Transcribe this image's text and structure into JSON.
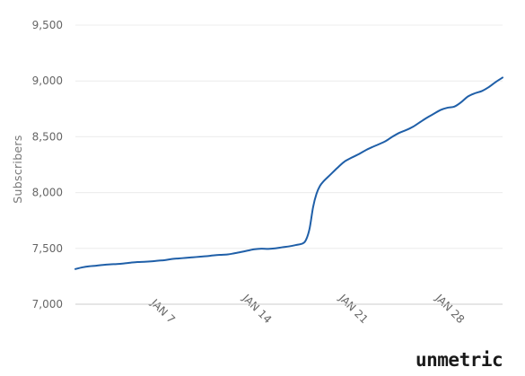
{
  "chart_data": {
    "type": "line",
    "title": "",
    "xlabel": "",
    "ylabel": "Subscribers",
    "ylim": [
      7000,
      9500
    ],
    "yticks": [
      7000,
      7500,
      8000,
      8500,
      9000,
      9500
    ],
    "ytick_labels": [
      "7,000",
      "7,500",
      "8,000",
      "8,500",
      "9,000",
      "9,500"
    ],
    "xticks": [
      7,
      14,
      21,
      28
    ],
    "xtick_labels": [
      "JAN 7",
      "JAN 14",
      "JAN 21",
      "JAN 28"
    ],
    "xlim": [
      1,
      32
    ],
    "grid": "horizontal",
    "series": [
      {
        "color": "#1f5fa8",
        "x": [
          1,
          1.5,
          2,
          2.5,
          3,
          3.5,
          4,
          4.5,
          5,
          5.5,
          6,
          6.5,
          7,
          7.5,
          8,
          8.5,
          9,
          9.5,
          10,
          10.5,
          11,
          11.5,
          12,
          12.5,
          13,
          13.5,
          14,
          14.5,
          15,
          15.5,
          16,
          16.5,
          17,
          17.5,
          17.75,
          18,
          18.25,
          18.5,
          18.75,
          19,
          19.5,
          20,
          20.5,
          21,
          21.5,
          22,
          22.5,
          23,
          23.5,
          24,
          24.5,
          25,
          25.5,
          26,
          26.5,
          27,
          27.5,
          28,
          28.5,
          29,
          29.5,
          30,
          30.5,
          31,
          31.5,
          32
        ],
        "y": [
          7315,
          7330,
          7340,
          7345,
          7352,
          7357,
          7360,
          7365,
          7372,
          7378,
          7380,
          7384,
          7390,
          7395,
          7405,
          7410,
          7415,
          7420,
          7425,
          7430,
          7437,
          7442,
          7445,
          7455,
          7467,
          7480,
          7492,
          7497,
          7495,
          7500,
          7510,
          7518,
          7530,
          7545,
          7580,
          7680,
          7870,
          7990,
          8060,
          8100,
          8160,
          8220,
          8275,
          8310,
          8340,
          8375,
          8405,
          8432,
          8460,
          8500,
          8535,
          8560,
          8590,
          8630,
          8670,
          8705,
          8740,
          8760,
          8770,
          8810,
          8862,
          8890,
          8910,
          8945,
          8990,
          9030
        ]
      }
    ]
  },
  "brand": {
    "logo_text": "unmetric"
  }
}
